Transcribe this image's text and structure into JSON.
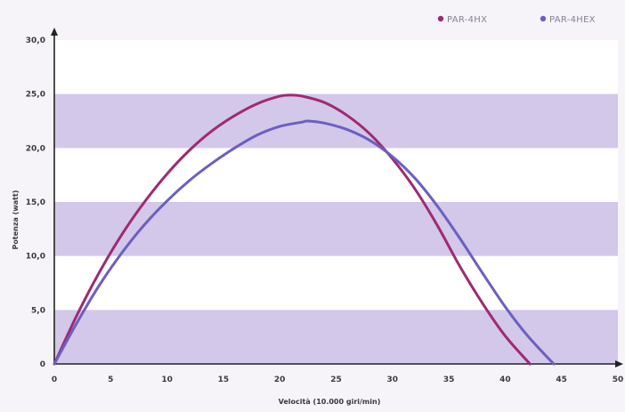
{
  "chart_data": {
    "type": "line",
    "title": "",
    "xlabel": "Velocità (10.000 giri/min)",
    "ylabel": "Potenza (watt)",
    "xlim": [
      0,
      50
    ],
    "ylim": [
      0,
      30
    ],
    "x_ticks": [
      "0",
      "5",
      "10",
      "15",
      "20",
      "25",
      "30",
      "35",
      "40",
      "45",
      "50"
    ],
    "y_ticks": [
      "0",
      "5,0",
      "10,0",
      "15,0",
      "20,0",
      "25,0",
      "30,0"
    ],
    "grid": "alternating horizontal bands",
    "band_color": "#cbbde6",
    "legend_position": "top-right",
    "series": [
      {
        "name": "PAR-4HX",
        "color": "#9e2a72",
        "x": [
          0,
          2,
          4,
          6,
          8,
          10,
          12,
          14,
          16,
          18,
          20,
          21,
          22,
          24,
          26,
          28,
          30,
          32,
          34,
          36,
          38,
          40,
          42.2
        ],
        "y": [
          0,
          4.5,
          8.5,
          12.0,
          15.0,
          17.6,
          19.8,
          21.6,
          23.0,
          24.1,
          24.8,
          24.9,
          24.8,
          24.2,
          23.0,
          21.3,
          19.0,
          16.2,
          12.8,
          9.0,
          5.6,
          2.6,
          0
        ]
      },
      {
        "name": "PAR-4HEX",
        "color": "#6b5fc0",
        "x": [
          0,
          2,
          4,
          6,
          8,
          10,
          12,
          14,
          16,
          18,
          20,
          22,
          22.5,
          24,
          26,
          28,
          30,
          32,
          34,
          36,
          38,
          40,
          42,
          44.3
        ],
        "y": [
          0,
          3.8,
          7.3,
          10.3,
          12.9,
          15.1,
          17.0,
          18.6,
          20.0,
          21.2,
          22.0,
          22.4,
          22.5,
          22.3,
          21.7,
          20.7,
          19.2,
          17.2,
          14.6,
          11.6,
          8.4,
          5.3,
          2.6,
          0
        ]
      }
    ]
  }
}
